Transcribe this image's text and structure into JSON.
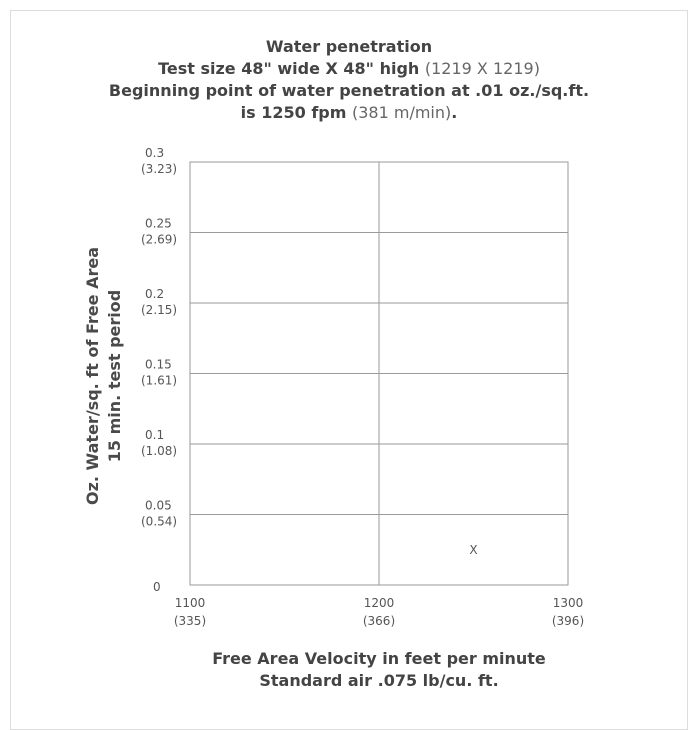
{
  "title": {
    "line1": "Water penetration",
    "line2_bold": "Test size 48\" wide X 48\" high",
    "line2_light": "(1219 X 1219)",
    "line3": "Beginning point of water penetration at .01 oz./sq.ft.",
    "line4_bold": "is 1250 fpm",
    "line4_light": "(381 m/min)",
    "line4_end": "."
  },
  "ylabel": {
    "line1": "Oz. Water/sq. ft of Free Area",
    "line2": "15 min. test period"
  },
  "xlabel": {
    "line1": "Free Area Velocity in feet per minute",
    "line2": "Standard air .075 lb/cu. ft."
  },
  "chart_data": {
    "type": "scatter",
    "x": [
      1250
    ],
    "y": [
      0.01
    ],
    "marker": "X",
    "xlim": [
      1100,
      1300
    ],
    "ylim": [
      0,
      0.3
    ],
    "x_ticks": [
      {
        "value": 1100,
        "label": "1100",
        "sublabel": "(335)"
      },
      {
        "value": 1200,
        "label": "1200",
        "sublabel": "(366)"
      },
      {
        "value": 1300,
        "label": "1300",
        "sublabel": "(396)"
      }
    ],
    "y_ticks": [
      {
        "value": 0,
        "label": "0",
        "sublabel": ""
      },
      {
        "value": 0.05,
        "label": "0.05",
        "sublabel": "(0.54)"
      },
      {
        "value": 0.1,
        "label": "0.1",
        "sublabel": "(1.08)"
      },
      {
        "value": 0.15,
        "label": "0.15",
        "sublabel": "(1.61)"
      },
      {
        "value": 0.2,
        "label": "0.2",
        "sublabel": "(2.15)"
      },
      {
        "value": 0.25,
        "label": "0.25",
        "sublabel": "(2.69)"
      },
      {
        "value": 0.3,
        "label": "0.3",
        "sublabel": "(3.23)"
      }
    ],
    "grid": true,
    "colors": {
      "grid": "#9a9a9a",
      "text": "#555555"
    }
  }
}
